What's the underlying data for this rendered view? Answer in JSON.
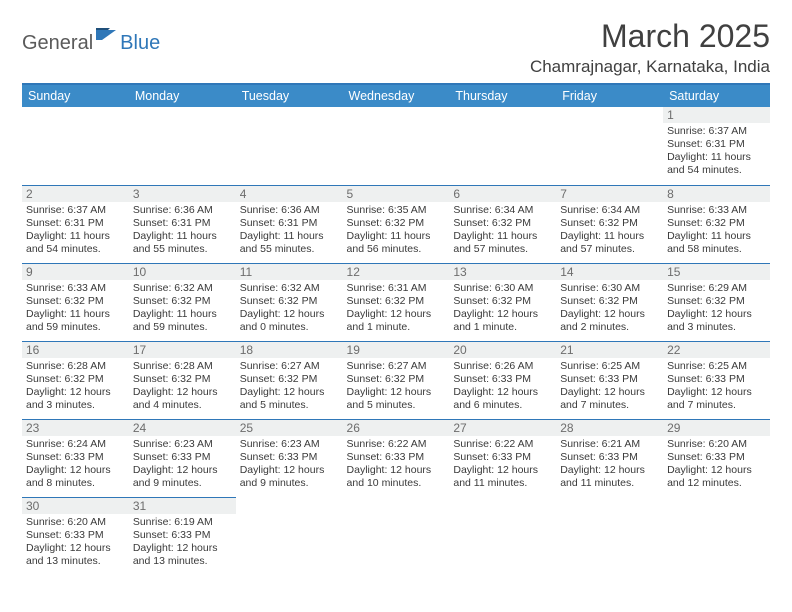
{
  "logo": {
    "word1": "General",
    "word2": "Blue"
  },
  "title": "March 2025",
  "location": "Chamrajnagar, Karnataka, India",
  "colors": {
    "header_bg": "#3b8bc8",
    "accent_line": "#2f77b8",
    "daynum_bg": "#eef0f0",
    "text": "#3a3a3a"
  },
  "daysOfWeek": [
    "Sunday",
    "Monday",
    "Tuesday",
    "Wednesday",
    "Thursday",
    "Friday",
    "Saturday"
  ],
  "weeks": [
    [
      {
        "n": "",
        "sr": "",
        "ss": "",
        "dl": ""
      },
      {
        "n": "",
        "sr": "",
        "ss": "",
        "dl": ""
      },
      {
        "n": "",
        "sr": "",
        "ss": "",
        "dl": ""
      },
      {
        "n": "",
        "sr": "",
        "ss": "",
        "dl": ""
      },
      {
        "n": "",
        "sr": "",
        "ss": "",
        "dl": ""
      },
      {
        "n": "",
        "sr": "",
        "ss": "",
        "dl": ""
      },
      {
        "n": "1",
        "sr": "Sunrise: 6:37 AM",
        "ss": "Sunset: 6:31 PM",
        "dl": "Daylight: 11 hours and 54 minutes."
      }
    ],
    [
      {
        "n": "2",
        "sr": "Sunrise: 6:37 AM",
        "ss": "Sunset: 6:31 PM",
        "dl": "Daylight: 11 hours and 54 minutes."
      },
      {
        "n": "3",
        "sr": "Sunrise: 6:36 AM",
        "ss": "Sunset: 6:31 PM",
        "dl": "Daylight: 11 hours and 55 minutes."
      },
      {
        "n": "4",
        "sr": "Sunrise: 6:36 AM",
        "ss": "Sunset: 6:31 PM",
        "dl": "Daylight: 11 hours and 55 minutes."
      },
      {
        "n": "5",
        "sr": "Sunrise: 6:35 AM",
        "ss": "Sunset: 6:32 PM",
        "dl": "Daylight: 11 hours and 56 minutes."
      },
      {
        "n": "6",
        "sr": "Sunrise: 6:34 AM",
        "ss": "Sunset: 6:32 PM",
        "dl": "Daylight: 11 hours and 57 minutes."
      },
      {
        "n": "7",
        "sr": "Sunrise: 6:34 AM",
        "ss": "Sunset: 6:32 PM",
        "dl": "Daylight: 11 hours and 57 minutes."
      },
      {
        "n": "8",
        "sr": "Sunrise: 6:33 AM",
        "ss": "Sunset: 6:32 PM",
        "dl": "Daylight: 11 hours and 58 minutes."
      }
    ],
    [
      {
        "n": "9",
        "sr": "Sunrise: 6:33 AM",
        "ss": "Sunset: 6:32 PM",
        "dl": "Daylight: 11 hours and 59 minutes."
      },
      {
        "n": "10",
        "sr": "Sunrise: 6:32 AM",
        "ss": "Sunset: 6:32 PM",
        "dl": "Daylight: 11 hours and 59 minutes."
      },
      {
        "n": "11",
        "sr": "Sunrise: 6:32 AM",
        "ss": "Sunset: 6:32 PM",
        "dl": "Daylight: 12 hours and 0 minutes."
      },
      {
        "n": "12",
        "sr": "Sunrise: 6:31 AM",
        "ss": "Sunset: 6:32 PM",
        "dl": "Daylight: 12 hours and 1 minute."
      },
      {
        "n": "13",
        "sr": "Sunrise: 6:30 AM",
        "ss": "Sunset: 6:32 PM",
        "dl": "Daylight: 12 hours and 1 minute."
      },
      {
        "n": "14",
        "sr": "Sunrise: 6:30 AM",
        "ss": "Sunset: 6:32 PM",
        "dl": "Daylight: 12 hours and 2 minutes."
      },
      {
        "n": "15",
        "sr": "Sunrise: 6:29 AM",
        "ss": "Sunset: 6:32 PM",
        "dl": "Daylight: 12 hours and 3 minutes."
      }
    ],
    [
      {
        "n": "16",
        "sr": "Sunrise: 6:28 AM",
        "ss": "Sunset: 6:32 PM",
        "dl": "Daylight: 12 hours and 3 minutes."
      },
      {
        "n": "17",
        "sr": "Sunrise: 6:28 AM",
        "ss": "Sunset: 6:32 PM",
        "dl": "Daylight: 12 hours and 4 minutes."
      },
      {
        "n": "18",
        "sr": "Sunrise: 6:27 AM",
        "ss": "Sunset: 6:32 PM",
        "dl": "Daylight: 12 hours and 5 minutes."
      },
      {
        "n": "19",
        "sr": "Sunrise: 6:27 AM",
        "ss": "Sunset: 6:32 PM",
        "dl": "Daylight: 12 hours and 5 minutes."
      },
      {
        "n": "20",
        "sr": "Sunrise: 6:26 AM",
        "ss": "Sunset: 6:33 PM",
        "dl": "Daylight: 12 hours and 6 minutes."
      },
      {
        "n": "21",
        "sr": "Sunrise: 6:25 AM",
        "ss": "Sunset: 6:33 PM",
        "dl": "Daylight: 12 hours and 7 minutes."
      },
      {
        "n": "22",
        "sr": "Sunrise: 6:25 AM",
        "ss": "Sunset: 6:33 PM",
        "dl": "Daylight: 12 hours and 7 minutes."
      }
    ],
    [
      {
        "n": "23",
        "sr": "Sunrise: 6:24 AM",
        "ss": "Sunset: 6:33 PM",
        "dl": "Daylight: 12 hours and 8 minutes."
      },
      {
        "n": "24",
        "sr": "Sunrise: 6:23 AM",
        "ss": "Sunset: 6:33 PM",
        "dl": "Daylight: 12 hours and 9 minutes."
      },
      {
        "n": "25",
        "sr": "Sunrise: 6:23 AM",
        "ss": "Sunset: 6:33 PM",
        "dl": "Daylight: 12 hours and 9 minutes."
      },
      {
        "n": "26",
        "sr": "Sunrise: 6:22 AM",
        "ss": "Sunset: 6:33 PM",
        "dl": "Daylight: 12 hours and 10 minutes."
      },
      {
        "n": "27",
        "sr": "Sunrise: 6:22 AM",
        "ss": "Sunset: 6:33 PM",
        "dl": "Daylight: 12 hours and 11 minutes."
      },
      {
        "n": "28",
        "sr": "Sunrise: 6:21 AM",
        "ss": "Sunset: 6:33 PM",
        "dl": "Daylight: 12 hours and 11 minutes."
      },
      {
        "n": "29",
        "sr": "Sunrise: 6:20 AM",
        "ss": "Sunset: 6:33 PM",
        "dl": "Daylight: 12 hours and 12 minutes."
      }
    ],
    [
      {
        "n": "30",
        "sr": "Sunrise: 6:20 AM",
        "ss": "Sunset: 6:33 PM",
        "dl": "Daylight: 12 hours and 13 minutes."
      },
      {
        "n": "31",
        "sr": "Sunrise: 6:19 AM",
        "ss": "Sunset: 6:33 PM",
        "dl": "Daylight: 12 hours and 13 minutes."
      },
      {
        "n": "",
        "sr": "",
        "ss": "",
        "dl": ""
      },
      {
        "n": "",
        "sr": "",
        "ss": "",
        "dl": ""
      },
      {
        "n": "",
        "sr": "",
        "ss": "",
        "dl": ""
      },
      {
        "n": "",
        "sr": "",
        "ss": "",
        "dl": ""
      },
      {
        "n": "",
        "sr": "",
        "ss": "",
        "dl": ""
      }
    ]
  ]
}
